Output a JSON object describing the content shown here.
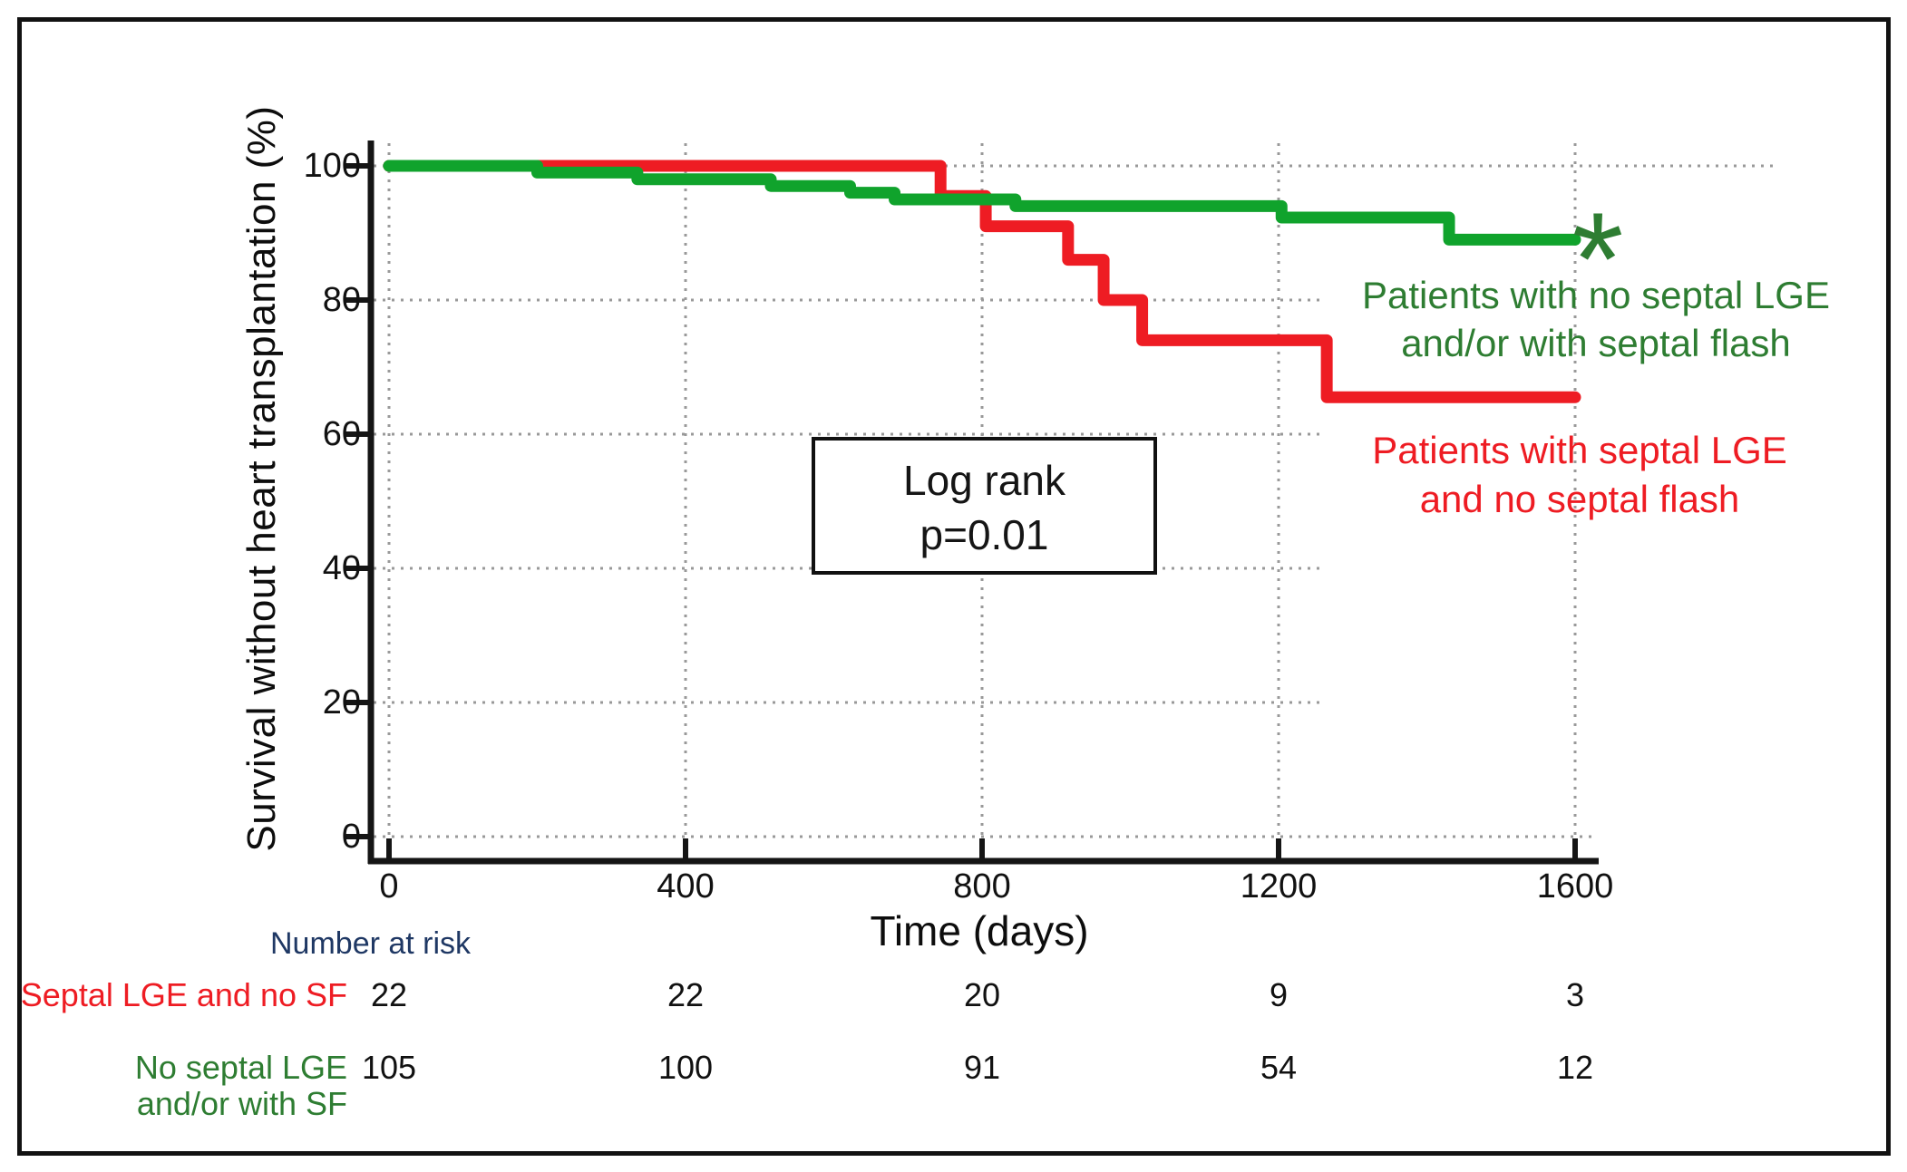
{
  "figure": {
    "y_axis_title": "Survival without heart transplantation (%)",
    "x_axis_title": "Time (days)",
    "stat_box": {
      "line1": "Log rank",
      "line2": "p=0.01"
    },
    "annotations": {
      "asterisk": "*"
    },
    "legend": {
      "green": {
        "line1": "Patients with no septal LGE",
        "line2": "and/or with septal flash"
      },
      "red": {
        "line1": "Patients with septal LGE",
        "line2": "and no septal flash"
      }
    },
    "colors": {
      "green_curve": "#10a32c",
      "green_text": "#2e7d32",
      "red": "#ee1c23",
      "navy": "#1f3864",
      "grid": "#999999",
      "axis": "#151515"
    }
  },
  "chart_data": {
    "type": "line",
    "subtype": "kaplan-meier-step",
    "title": "",
    "xlabel": "Time (days)",
    "ylabel": "Survival without heart transplantation (%)",
    "xlim": [
      0,
      1600
    ],
    "ylim": [
      0,
      100
    ],
    "x_ticks": [
      0,
      400,
      800,
      1200,
      1600
    ],
    "y_ticks": [
      100,
      80,
      60,
      40,
      20,
      0
    ],
    "grid": true,
    "legend_position": "right",
    "annotation": "Log rank p=0.01",
    "series": [
      {
        "name": "Patients with no septal LGE and/or with septal flash",
        "color": "#10a32c",
        "end_day": 1600,
        "steps": [
          [
            0,
            100
          ],
          [
            200,
            99
          ],
          [
            335,
            98
          ],
          [
            515,
            97
          ],
          [
            622,
            96
          ],
          [
            682,
            95
          ],
          [
            845,
            94
          ],
          [
            1204,
            92.3
          ],
          [
            1430,
            89
          ]
        ]
      },
      {
        "name": "Patients with septal LGE and no septal flash",
        "color": "#ee1c23",
        "end_day": 1600,
        "steps": [
          [
            0,
            100
          ],
          [
            744,
            95.5
          ],
          [
            805,
            91
          ],
          [
            916,
            86
          ],
          [
            964,
            80
          ],
          [
            1016,
            74
          ],
          [
            1265,
            65.5
          ]
        ]
      }
    ]
  },
  "risk_table": {
    "title": "Number at risk",
    "time_points": [
      0,
      400,
      800,
      1200,
      1600
    ],
    "rows": [
      {
        "label_lines": [
          "Septal LGE and no SF"
        ],
        "color": "#ee1c23",
        "values": [
          "22",
          "22",
          "20",
          "9",
          "3"
        ]
      },
      {
        "label_lines": [
          "No septal LGE",
          "and/or with SF"
        ],
        "color": "#2e7d32",
        "values": [
          "105",
          "100",
          "91",
          "54",
          "12"
        ]
      }
    ]
  }
}
